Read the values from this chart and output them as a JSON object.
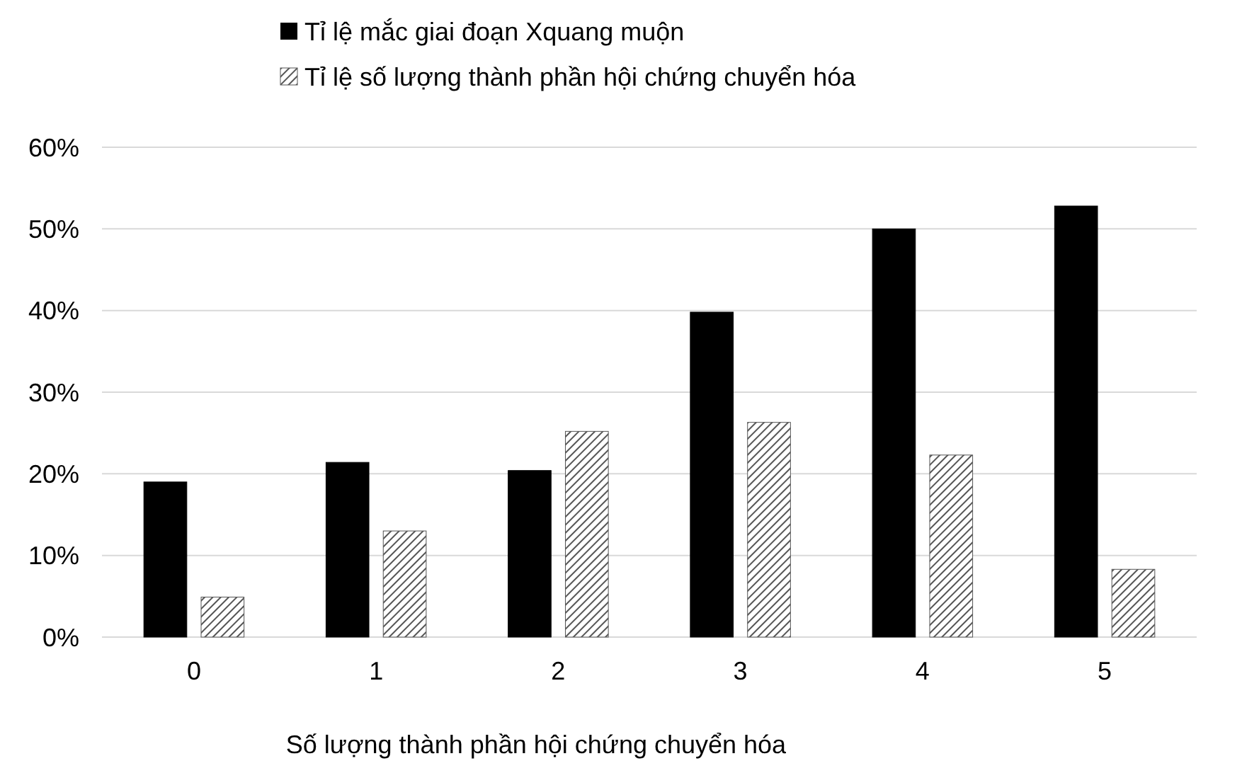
{
  "chart_data": {
    "type": "bar",
    "xlabel": "Số lượng thành phần hội chứng chuyển hóa",
    "categories": [
      "0",
      "1",
      "2",
      "3",
      "4",
      "5"
    ],
    "series": [
      {
        "name": "Tỉ lệ mắc giai đoạn Xquang muộn",
        "color": "#000000",
        "values": [
          19.0,
          21.4,
          20.4,
          39.8,
          50.0,
          52.8
        ]
      },
      {
        "name": "Tỉ lệ số lượng thành phần hội chứng chuyển hóa",
        "color": "#555555",
        "values": [
          4.9,
          13.0,
          25.2,
          26.3,
          22.3,
          8.3
        ]
      }
    ],
    "ylim": [
      0,
      60
    ],
    "yticks": [
      {
        "value": 0,
        "label": "0%"
      },
      {
        "value": 10,
        "label": "10%"
      },
      {
        "value": 20,
        "label": "20%"
      },
      {
        "value": 30,
        "label": "30%"
      },
      {
        "value": 40,
        "label": "40%"
      },
      {
        "value": 50,
        "label": "50%"
      },
      {
        "value": 60,
        "label": "60%"
      }
    ],
    "grid": "y",
    "legend": "top"
  }
}
